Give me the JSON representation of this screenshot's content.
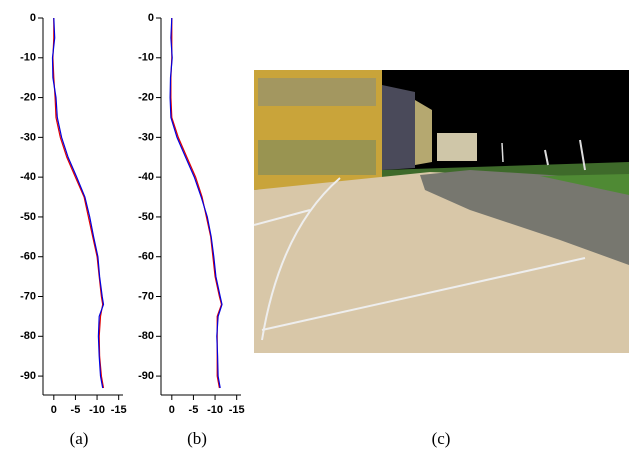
{
  "chart_data": [
    {
      "type": "line",
      "caption": "(a)",
      "y": [
        0,
        -5,
        -10,
        -15,
        -20,
        -25,
        -30,
        -35,
        -40,
        -45,
        -50,
        -55,
        -60,
        -65,
        -70,
        -72,
        -75,
        -80,
        -85,
        -90,
        -93
      ],
      "series": [
        {
          "color": "#e00000",
          "x": [
            0,
            0,
            0.2,
            0,
            -0.3,
            -0.5,
            -1.5,
            -3,
            -5,
            -7,
            -8,
            -9,
            -10,
            -10.5,
            -11,
            -11.3,
            -10.8,
            -10.5,
            -10.6,
            -11,
            -11.5
          ]
        },
        {
          "color": "#0000e0",
          "x": [
            0,
            -0.2,
            0.3,
            0.2,
            -0.5,
            -0.8,
            -1.8,
            -3.3,
            -5.3,
            -7.2,
            -8.3,
            -9.2,
            -10.2,
            -10.6,
            -11.2,
            -11.5,
            -10.5,
            -10.3,
            -10.5,
            -10.8,
            -11.3
          ]
        }
      ],
      "xlim": [
        2.5,
        -16
      ],
      "ylim": [
        -94,
        0
      ],
      "xticks": [
        0,
        -5,
        -10,
        -15
      ],
      "yticks": [
        0,
        -10,
        -20,
        -30,
        -40,
        -50,
        -60,
        -70,
        -80,
        -90
      ]
    },
    {
      "type": "line",
      "caption": "(b)",
      "y": [
        0,
        -5,
        -10,
        -15,
        -20,
        -25,
        -30,
        -35,
        -40,
        -45,
        -50,
        -55,
        -60,
        -65,
        -70,
        -72,
        -75,
        -80,
        -85,
        -90,
        -93
      ],
      "series": [
        {
          "color": "#e00000",
          "x": [
            0,
            0,
            0,
            0.2,
            0.2,
            0,
            -1.5,
            -3.5,
            -5.5,
            -7,
            -8,
            -9,
            -9.5,
            -10,
            -11,
            -11.5,
            -10.5,
            -10.5,
            -10.5,
            -10.5,
            -11
          ]
        },
        {
          "color": "#0000e0",
          "x": [
            0,
            0.2,
            -0.1,
            0.3,
            0.4,
            0.2,
            -1.2,
            -3.2,
            -5.2,
            -6.8,
            -8.2,
            -9.1,
            -9.7,
            -10.2,
            -11.2,
            -11.6,
            -10.7,
            -10.4,
            -10.6,
            -10.7,
            -11.2
          ]
        }
      ],
      "xlim": [
        2.5,
        -16
      ],
      "ylim": [
        -94,
        0
      ],
      "xticks": [
        0,
        -5,
        -10,
        -15
      ],
      "yticks": [
        0,
        -10,
        -20,
        -30,
        -40,
        -50,
        -60,
        -70,
        -80,
        -90
      ]
    }
  ],
  "image_caption": "(c)"
}
